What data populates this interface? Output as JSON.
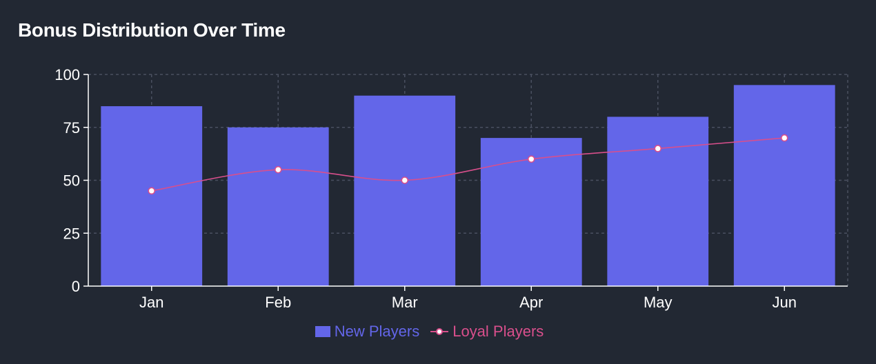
{
  "title": "Bonus Distribution Over Time",
  "colors": {
    "background": "#222833",
    "bar": "#6366e9",
    "line": "#d94f8c",
    "grid": "#4a5060",
    "axis": "#ffffff"
  },
  "legend": {
    "bar_label": "New Players",
    "line_label": "Loyal Players"
  },
  "chart_data": {
    "type": "bar",
    "title": "Bonus Distribution Over Time",
    "categories": [
      "Jan",
      "Feb",
      "Mar",
      "Apr",
      "May",
      "Jun"
    ],
    "series": [
      {
        "name": "New Players",
        "type": "bar",
        "values": [
          85,
          75,
          90,
          70,
          80,
          95
        ]
      },
      {
        "name": "Loyal Players",
        "type": "line",
        "values": [
          45,
          55,
          50,
          60,
          65,
          70
        ]
      }
    ],
    "xlabel": "",
    "ylabel": "",
    "ylim": [
      0,
      100
    ],
    "yticks": [
      0,
      25,
      50,
      75,
      100
    ],
    "grid": true,
    "legend_position": "bottom"
  }
}
